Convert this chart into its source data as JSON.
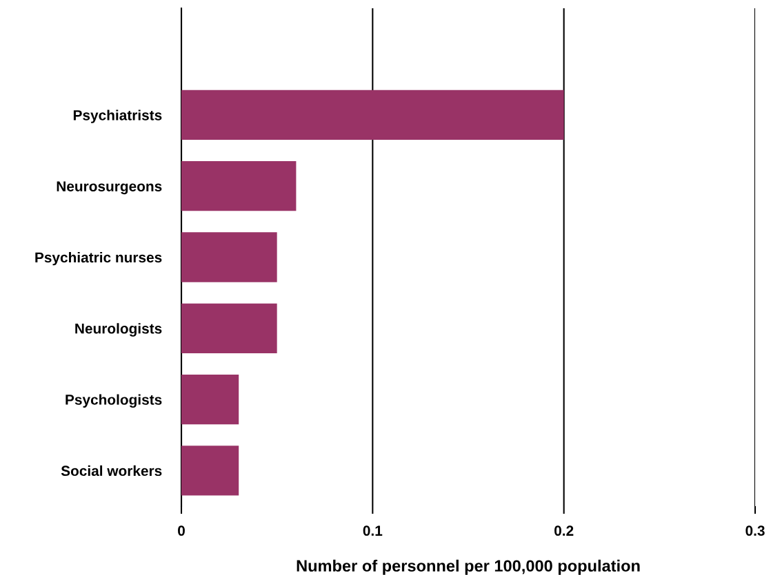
{
  "chart_data": {
    "type": "bar",
    "orientation": "horizontal",
    "categories": [
      null,
      "Psychiatrists",
      "Neurosurgeons",
      "Psychiatric nurses",
      "Neurologists",
      "Psychologists",
      "Social workers"
    ],
    "values": [
      null,
      0.2,
      0.06,
      0.05,
      0.05,
      0.03,
      0.03
    ],
    "color": "#993366",
    "xlabel": "Number of personnel per 100,000 population",
    "xlim": [
      0,
      0.3
    ],
    "xticks": [
      0,
      0.1,
      0.2,
      0.3
    ],
    "grid": "x",
    "legend": false
  }
}
